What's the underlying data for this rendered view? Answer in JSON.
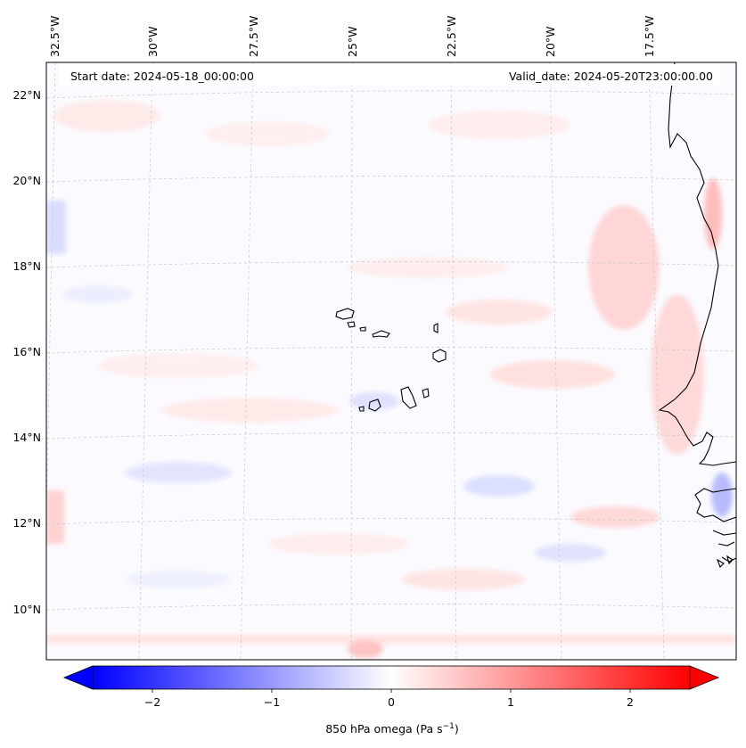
{
  "header": {
    "start_date": "Start date: 2024-05-18_00:00:00",
    "valid_date": "Valid_date: 2024-05-20T23:00:00.00"
  },
  "map": {
    "lon_labels": [
      "32.5°W",
      "30°W",
      "27.5°W",
      "25°W",
      "22.5°W",
      "20°W",
      "17.5°W"
    ],
    "lat_labels": [
      "22°N",
      "20°N",
      "18°N",
      "16°N",
      "14°N",
      "12°N",
      "10°N"
    ],
    "gridlines": true,
    "colors": {
      "negative": "#0000ff",
      "positive": "#ff0000",
      "zero": "#ffffff",
      "coastline": "#000000"
    }
  },
  "colorbar": {
    "label_prefix": "850 hPa omega (Pa s",
    "label_unit_exp": "−1",
    "label_suffix": ")",
    "ticks": [
      "−2",
      "−1",
      "0",
      "1",
      "2"
    ],
    "range": [
      -2.6,
      2.6
    ],
    "extend": "both"
  }
}
